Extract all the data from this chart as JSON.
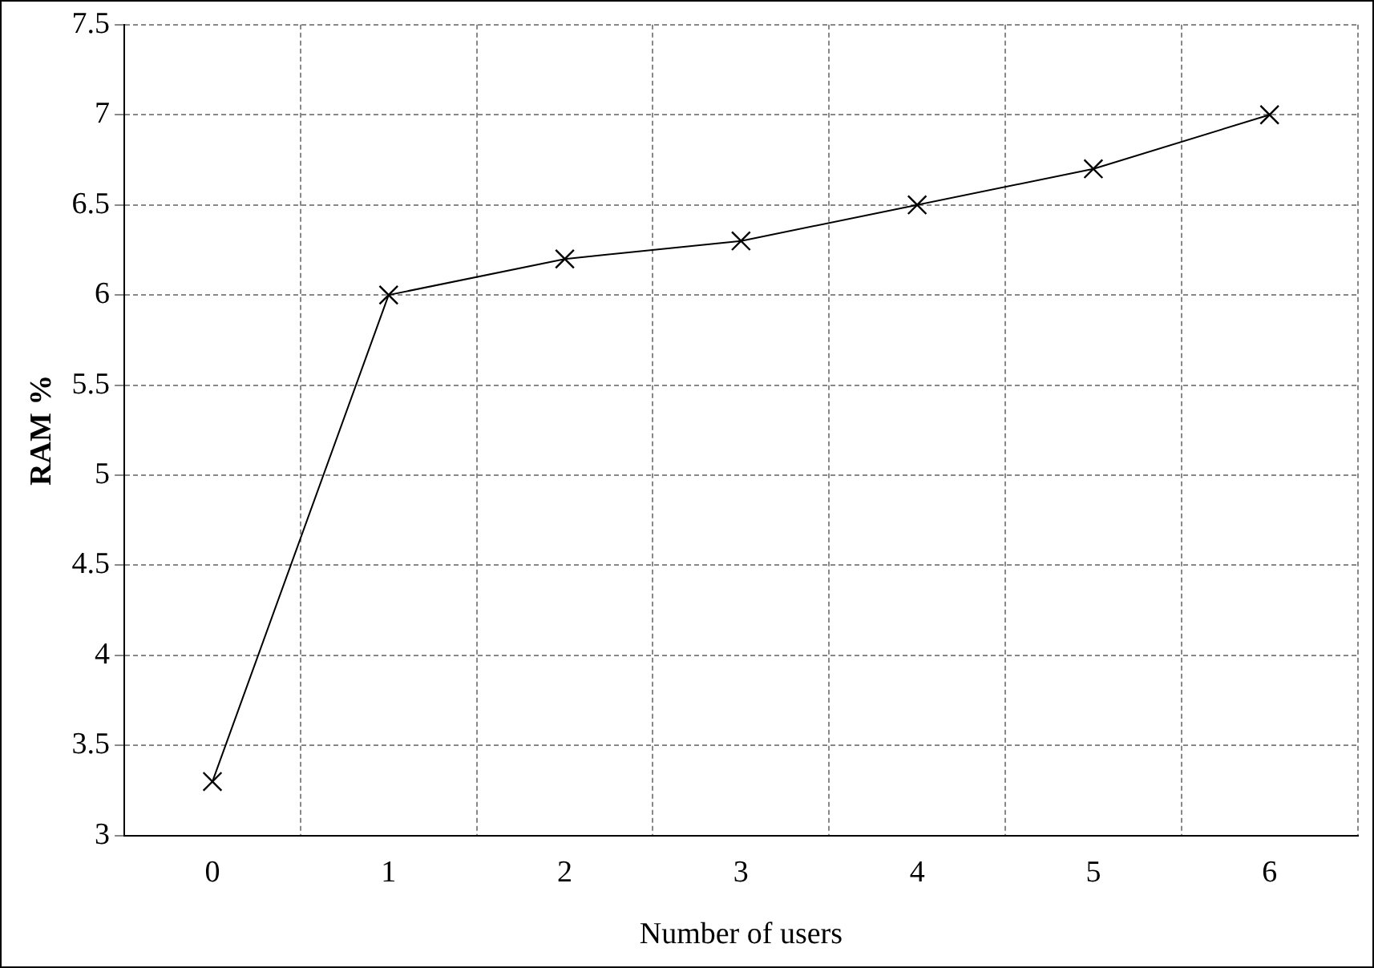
{
  "chart_data": {
    "type": "line",
    "xlabel": "Number of users",
    "ylabel": "RAM %",
    "categories": [
      "0",
      "1",
      "2",
      "3",
      "4",
      "5",
      "6"
    ],
    "series": [
      {
        "color": "#000000",
        "values": [
          3.3,
          6.0,
          6.2,
          6.3,
          6.5,
          6.7,
          7.0
        ]
      }
    ],
    "ylim": [
      3,
      7.5
    ],
    "yticks": [
      3,
      3.5,
      4,
      4.5,
      5,
      5.5,
      6,
      6.5,
      7,
      7.5
    ],
    "grid": true,
    "legend": false,
    "marker": "cross",
    "line_style": "solid"
  }
}
